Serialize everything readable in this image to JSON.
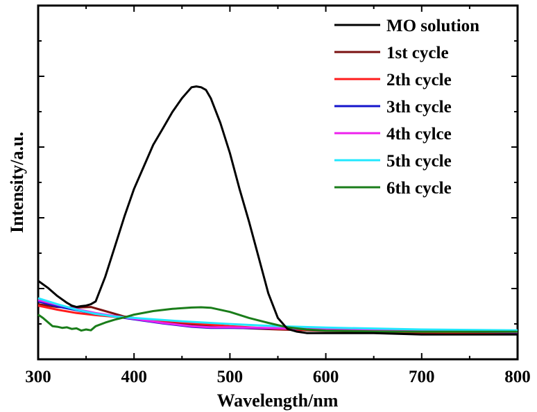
{
  "chart_data": {
    "type": "line",
    "title": "",
    "xlabel": "Wavelength/nm",
    "ylabel": "Intensity/a.u.",
    "xlim": [
      300,
      800
    ],
    "ylim": [
      0,
      1
    ],
    "xticks": [
      300,
      400,
      500,
      600,
      700,
      800
    ],
    "y_tick_labels_shown": false,
    "grid": false,
    "legend_position": "top-right",
    "series": [
      {
        "name": "MO solution",
        "color": "#000000",
        "x": [
          300,
          310,
          320,
          330,
          335,
          340,
          345,
          350,
          355,
          360,
          370,
          380,
          390,
          400,
          410,
          420,
          430,
          440,
          450,
          455,
          460,
          465,
          470,
          475,
          480,
          490,
          500,
          510,
          520,
          530,
          540,
          550,
          560,
          570,
          580,
          600,
          650,
          700,
          750,
          800
        ],
        "y": [
          0.235,
          0.21,
          0.18,
          0.155,
          0.145,
          0.14,
          0.143,
          0.145,
          0.15,
          0.16,
          0.25,
          0.36,
          0.47,
          0.57,
          0.65,
          0.73,
          0.79,
          0.85,
          0.9,
          0.92,
          0.94,
          0.943,
          0.94,
          0.93,
          0.9,
          0.81,
          0.7,
          0.57,
          0.45,
          0.32,
          0.19,
          0.1,
          0.06,
          0.05,
          0.045,
          0.045,
          0.045,
          0.04,
          0.04,
          0.04
        ]
      },
      {
        "name": "1st cycle",
        "color": "#7a1010",
        "x": [
          300,
          320,
          340,
          355,
          370,
          390,
          420,
          450,
          500,
          550,
          600,
          700,
          800
        ],
        "y": [
          0.15,
          0.14,
          0.138,
          0.14,
          0.125,
          0.105,
          0.09,
          0.08,
          0.065,
          0.058,
          0.053,
          0.046,
          0.042
        ]
      },
      {
        "name": "2th cycle",
        "color": "#ff1c1c",
        "x": [
          300,
          320,
          340,
          360,
          380,
          400,
          450,
          500,
          550,
          600,
          700,
          800
        ],
        "y": [
          0.145,
          0.13,
          0.118,
          0.11,
          0.104,
          0.098,
          0.084,
          0.07,
          0.06,
          0.055,
          0.048,
          0.043
        ]
      },
      {
        "name": "3th cycle",
        "color": "#1414cc",
        "x": [
          300,
          320,
          340,
          360,
          380,
          400,
          430,
          460,
          480,
          500,
          550,
          600,
          700,
          800
        ],
        "y": [
          0.16,
          0.142,
          0.128,
          0.115,
          0.105,
          0.095,
          0.08,
          0.068,
          0.064,
          0.064,
          0.062,
          0.058,
          0.052,
          0.048
        ]
      },
      {
        "name": "4th cylce",
        "color": "#ee22ee",
        "x": [
          300,
          320,
          340,
          360,
          380,
          400,
          430,
          460,
          480,
          500,
          550,
          600,
          700,
          800
        ],
        "y": [
          0.165,
          0.148,
          0.132,
          0.118,
          0.107,
          0.097,
          0.082,
          0.07,
          0.066,
          0.066,
          0.063,
          0.059,
          0.053,
          0.049
        ]
      },
      {
        "name": "5th cycle",
        "color": "#22e8ff",
        "x": [
          300,
          320,
          340,
          360,
          380,
          400,
          450,
          500,
          550,
          600,
          700,
          800
        ],
        "y": [
          0.172,
          0.15,
          0.13,
          0.115,
          0.105,
          0.1,
          0.088,
          0.078,
          0.07,
          0.065,
          0.058,
          0.055
        ]
      },
      {
        "name": "6th cycle",
        "color": "#1a7d1a",
        "x": [
          300,
          305,
          310,
          315,
          320,
          325,
          330,
          335,
          340,
          345,
          350,
          355,
          360,
          370,
          380,
          390,
          400,
          420,
          440,
          460,
          470,
          480,
          500,
          520,
          540,
          560,
          580,
          600,
          620,
          650,
          700,
          750,
          800
        ],
        "y": [
          0.112,
          0.1,
          0.085,
          0.07,
          0.068,
          0.064,
          0.066,
          0.06,
          0.062,
          0.054,
          0.058,
          0.055,
          0.07,
          0.083,
          0.094,
          0.102,
          0.112,
          0.125,
          0.133,
          0.138,
          0.139,
          0.137,
          0.122,
          0.1,
          0.082,
          0.066,
          0.058,
          0.054,
          0.053,
          0.051,
          0.05,
          0.05,
          0.05
        ]
      }
    ]
  }
}
